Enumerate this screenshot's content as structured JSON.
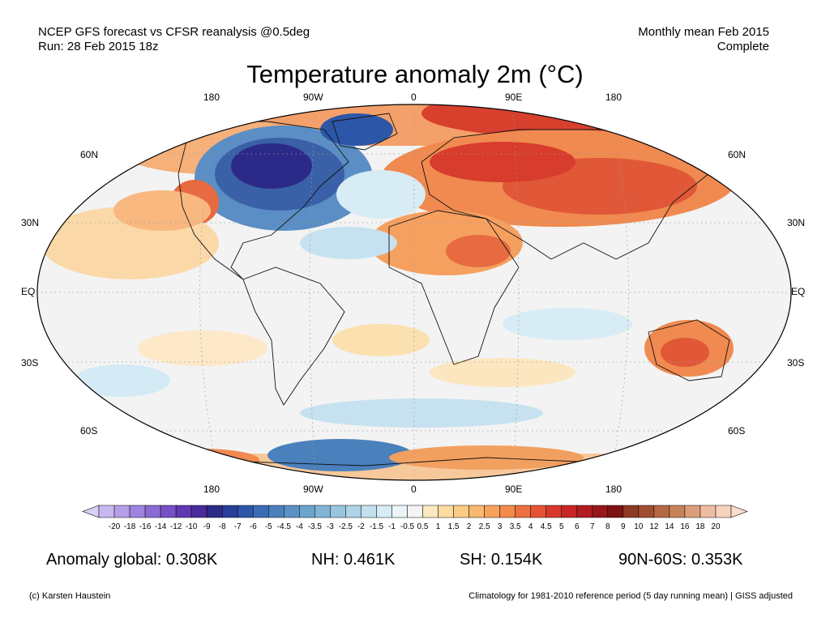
{
  "header": {
    "left_line1": "NCEP GFS forecast vs CFSR reanalysis @0.5deg",
    "left_line2": "Run: 28 Feb 2015 18z",
    "right_line1": "Monthly mean Feb 2015",
    "right_line2": "Complete"
  },
  "title": "Temperature anomaly 2m (°C)",
  "map": {
    "lon_labels": [
      "180",
      "90W",
      "0",
      "90E",
      "180"
    ],
    "lat_labels_left": [
      "60N",
      "30N",
      "EQ",
      "30S",
      "60S"
    ],
    "lat_labels_right": [
      "60N",
      "30N",
      "EQ",
      "30S",
      "60S"
    ]
  },
  "colorbar": {
    "ticks": [
      "-20",
      "-18",
      "-16",
      "-14",
      "-12",
      "-10",
      "-9",
      "-8",
      "-7",
      "-6",
      "-5",
      "-4.5",
      "-4",
      "-3.5",
      "-3",
      "-2.5",
      "-2",
      "-1.5",
      "-1",
      "-0.5",
      "0.5",
      "1",
      "1.5",
      "2",
      "2.5",
      "3",
      "3.5",
      "4",
      "4.5",
      "5",
      "6",
      "7",
      "8",
      "9",
      "10",
      "12",
      "14",
      "16",
      "18",
      "20"
    ],
    "colors": [
      "#c8b8f0",
      "#b49ee8",
      "#9e84de",
      "#8a6ad4",
      "#7650c6",
      "#6038b4",
      "#4a2a9a",
      "#2c2a88",
      "#283e98",
      "#2c56a8",
      "#3a6cb4",
      "#4a80bc",
      "#5a92c4",
      "#6ca4cc",
      "#82b4d6",
      "#98c4de",
      "#aed2e6",
      "#c2e0ee",
      "#d6ecf6",
      "#ecf4f8",
      "#f4f4f4",
      "#fbeac0",
      "#fcdca0",
      "#fccc86",
      "#f8b86e",
      "#f6a25c",
      "#f28a4c",
      "#ec7040",
      "#e45434",
      "#d8382c",
      "#c82626",
      "#b01c20",
      "#96161a",
      "#7e1212",
      "#8c3a22",
      "#a04e30",
      "#b46844",
      "#c8825a",
      "#dc9e7a",
      "#eebca2",
      "#f6d2bc"
    ],
    "low_cap_color": "#dccff6",
    "high_cap_color": "#f8dccc"
  },
  "stats": {
    "global": "Anomaly global: 0.308K",
    "nh": "NH: 0.461K",
    "sh": "SH: 0.154K",
    "arctic": "90N-60S: 0.353K"
  },
  "footer": {
    "credit": "(c) Karsten Haustein",
    "note": "Climatology for 1981-2010 reference period (5 day running mean) | GISS adjusted"
  }
}
